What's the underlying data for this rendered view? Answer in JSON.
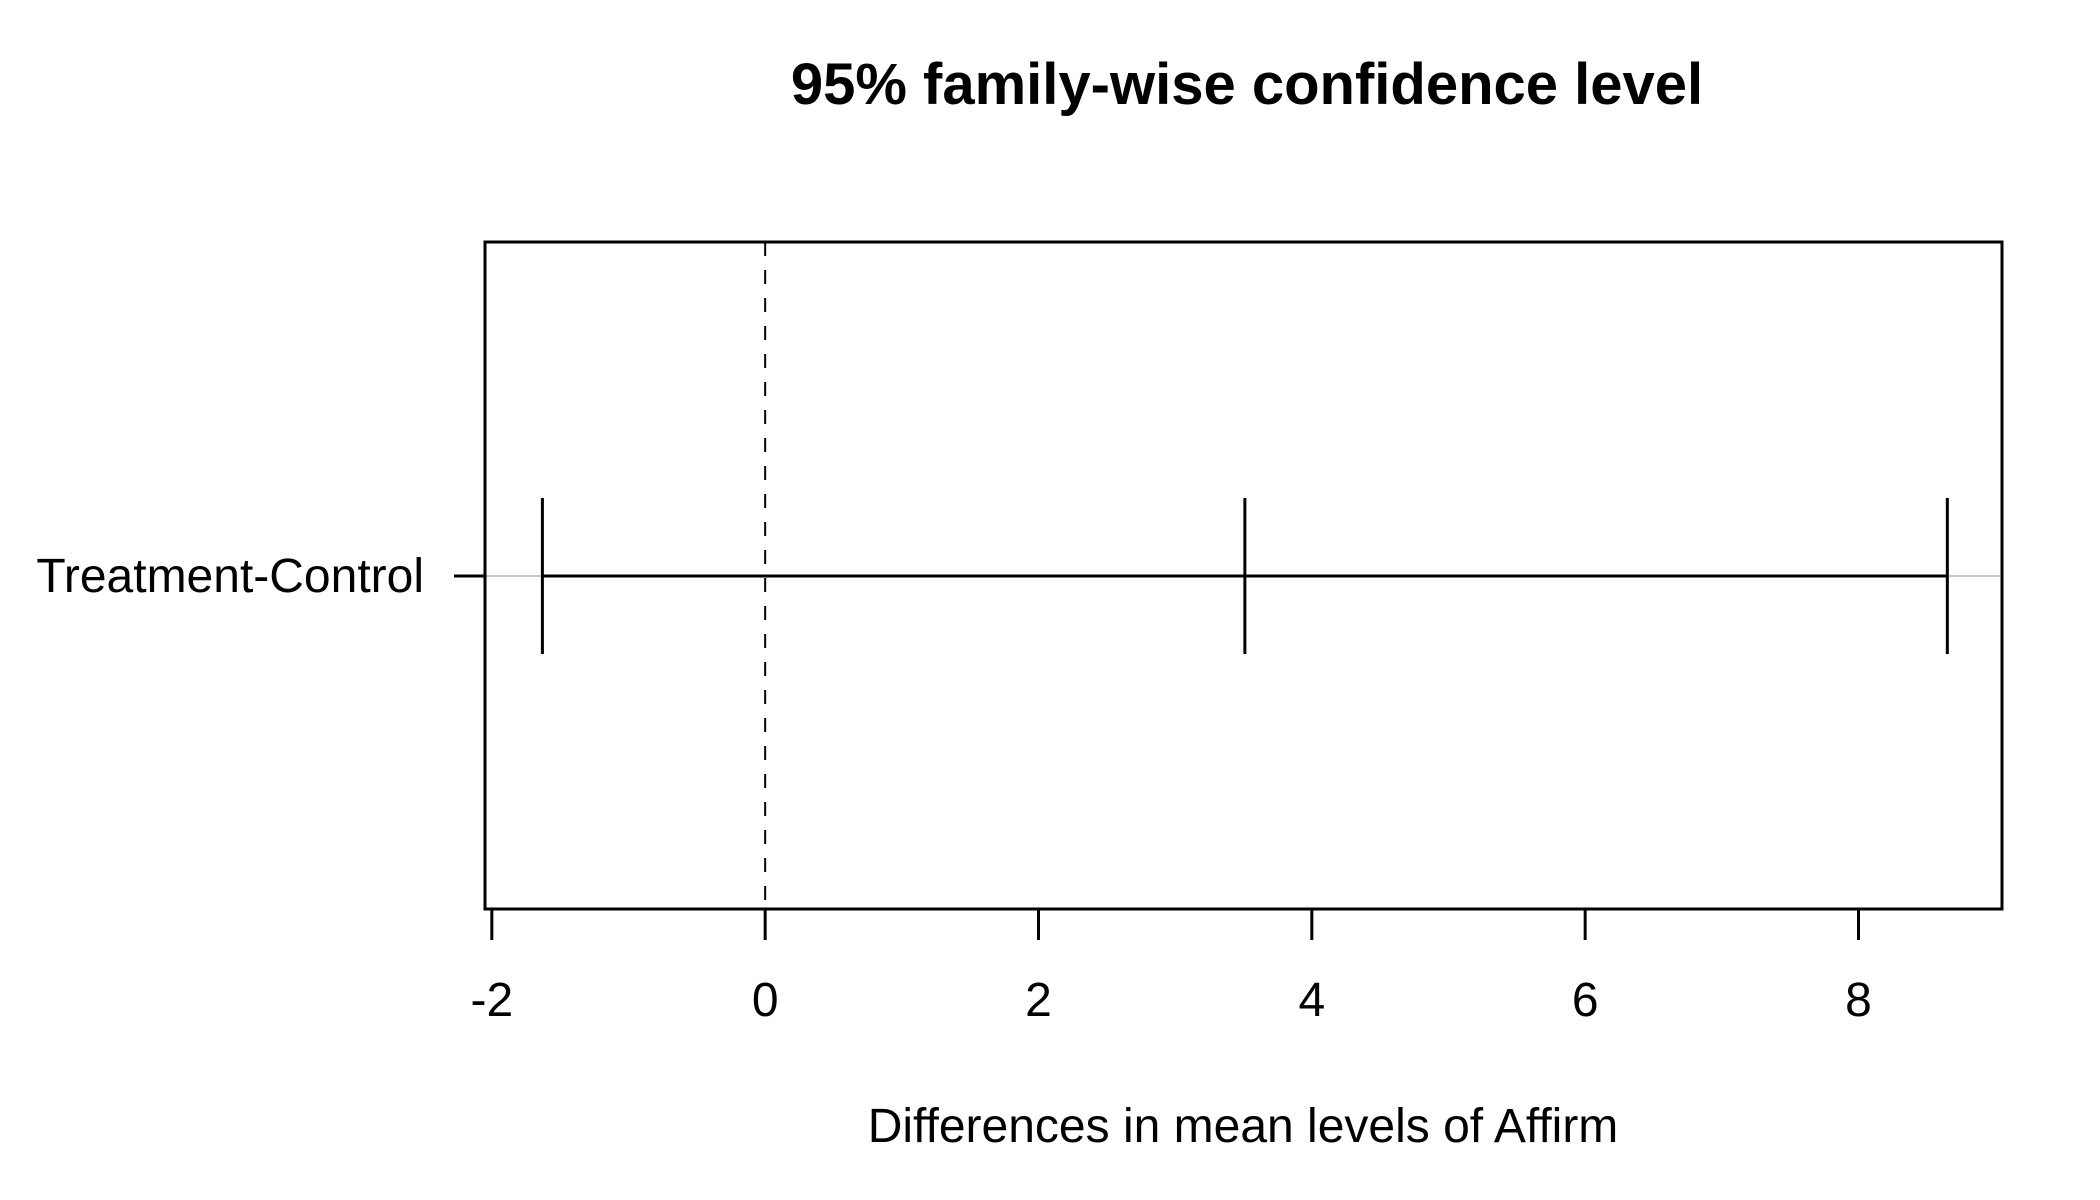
{
  "chart_data": {
    "type": "errorbar",
    "title": "95% family-wise confidence level",
    "xlabel": "Differences in mean levels of Affirm",
    "ylabel": "",
    "xlim": [
      -2.05,
      9.05
    ],
    "xticks": [
      -2,
      0,
      2,
      4,
      6,
      8
    ],
    "xtick_labels": [
      "-2",
      "0",
      "2",
      "4",
      "6",
      "8"
    ],
    "reference_line": 0,
    "grid": false,
    "intervals": [
      {
        "label": "Treatment-Control",
        "lwr": -1.63,
        "diff": 3.51,
        "upr": 8.65
      }
    ]
  }
}
